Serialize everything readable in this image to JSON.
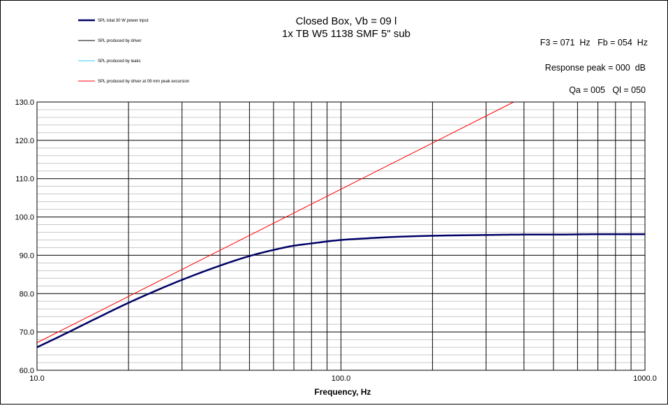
{
  "chart_data": {
    "type": "line",
    "title": [
      "Closed Box, Vb = 09 l",
      "1x TB W5 1138 SMF 5\" sub"
    ],
    "info_lines": [
      "F3 = 071  Hz   Fb = 054  Hz",
      "Response peak = 000  dB",
      "Qa = 005   Ql = 050"
    ],
    "xlabel": "Frequency, Hz",
    "ylabel": "",
    "x_scale": "log",
    "xlim": [
      10,
      1000
    ],
    "ylim": [
      60,
      130
    ],
    "x_tick_labels": [
      "10.0",
      "100.0",
      "1000.0"
    ],
    "y_tick_labels": [
      "60.0",
      "70.0",
      "80.0",
      "90.0",
      "100.0",
      "110.0",
      "120.0",
      "130.0"
    ],
    "grid": true,
    "legend": {
      "placement": "top-left",
      "entries": [
        {
          "name": "SPL total 30 W power input",
          "color": "#000066"
        },
        {
          "name": "SPL produced by driver",
          "color": "#000000"
        },
        {
          "name": "SPL produced by leaks",
          "color": "#33ccff"
        },
        {
          "name": "SPL produced by driver at 09 mm peak excursion",
          "color": "#ff0000"
        }
      ]
    },
    "series": [
      {
        "name": "SPL total 30 W power input",
        "color": "#000066",
        "x": [
          10,
          12,
          15,
          20,
          25,
          30,
          40,
          50,
          60,
          70,
          80,
          100,
          120,
          150,
          200,
          300,
          400,
          500,
          700,
          1000
        ],
        "y": [
          66.0,
          69.0,
          72.8,
          77.6,
          81.0,
          83.6,
          87.3,
          89.8,
          91.4,
          92.5,
          93.1,
          94.0,
          94.4,
          94.8,
          95.1,
          95.3,
          95.4,
          95.4,
          95.5,
          95.5
        ]
      },
      {
        "name": "SPL produced by driver at 09 mm peak excursion",
        "color": "#ff0000",
        "x": [
          10,
          370
        ],
        "y": [
          67.2,
          130.0
        ]
      }
    ]
  }
}
